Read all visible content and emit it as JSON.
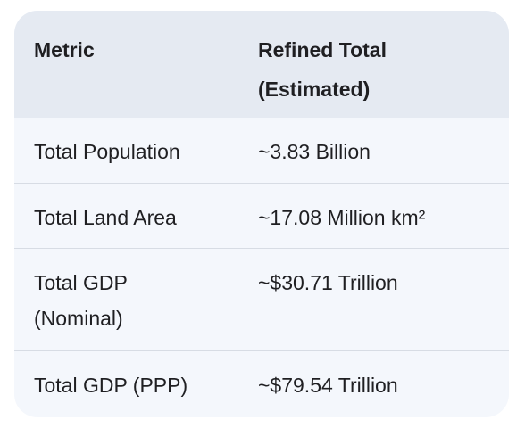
{
  "table": {
    "headers": {
      "metric": "Metric",
      "total_line1": "Refined Total",
      "total_line2": "(Estimated)"
    },
    "rows": [
      {
        "metric": "Total Population",
        "value": "~3.83 Billion"
      },
      {
        "metric": "Total Land Area",
        "value": "~17.08 Million km²"
      },
      {
        "metric_line1": "Total GDP",
        "metric_line2": "(Nominal)",
        "value": "~$30.71 Trillion"
      },
      {
        "metric": "Total GDP (PPP)",
        "value": "~$79.54 Trillion"
      }
    ]
  }
}
